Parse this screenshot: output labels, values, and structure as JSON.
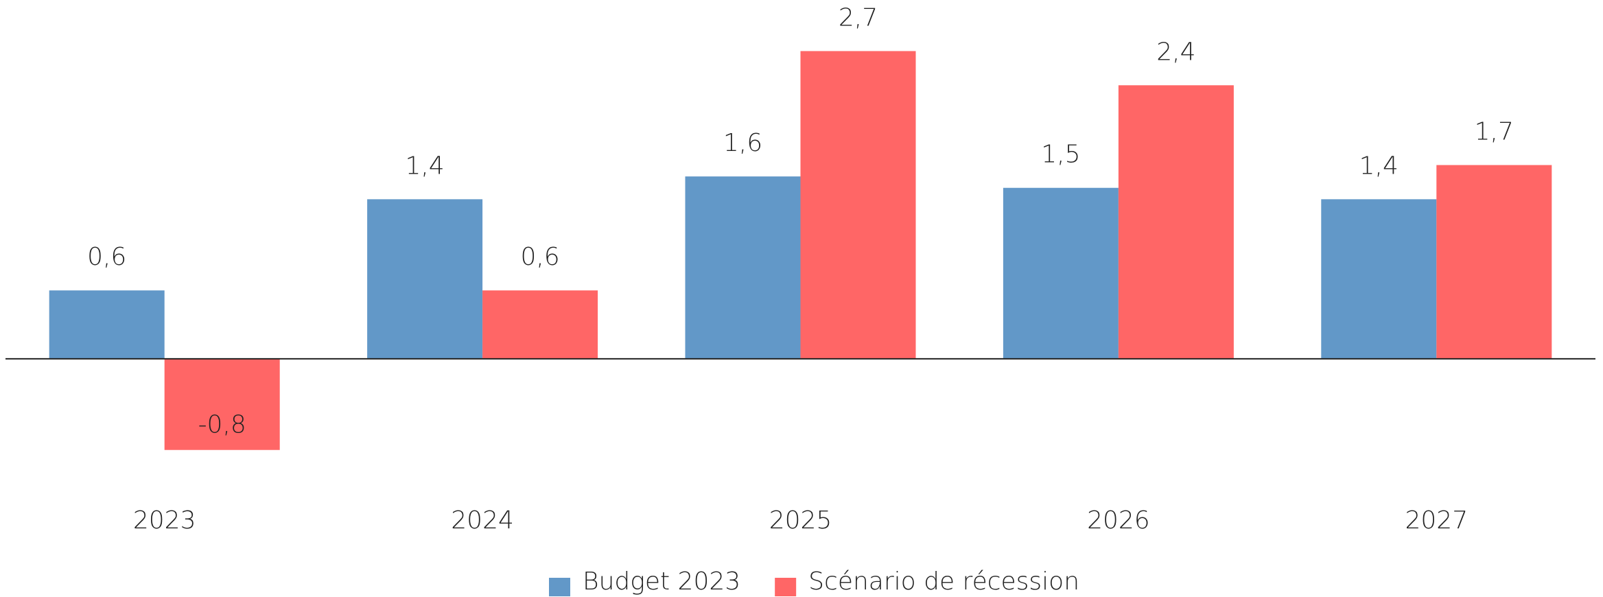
{
  "chart_data": {
    "type": "bar",
    "categories": [
      "2023",
      "2024",
      "2025",
      "2026",
      "2027"
    ],
    "series": [
      {
        "name": "Budget 2023",
        "color": "#6298c8",
        "values": [
          0.6,
          1.4,
          1.6,
          1.5,
          1.4
        ],
        "value_labels": [
          "0,6",
          "1,4",
          "1,6",
          "1,5",
          "1,4"
        ]
      },
      {
        "name": "Scénario de récession",
        "color": "#ff6666",
        "values": [
          -0.8,
          0.6,
          2.7,
          2.4,
          1.7
        ],
        "value_labels": [
          "-0,8",
          "0,6",
          "2,7",
          "2,4",
          "1,7"
        ]
      }
    ],
    "ylim": [
      -1.5,
      3.1
    ],
    "legend": "bottom"
  }
}
